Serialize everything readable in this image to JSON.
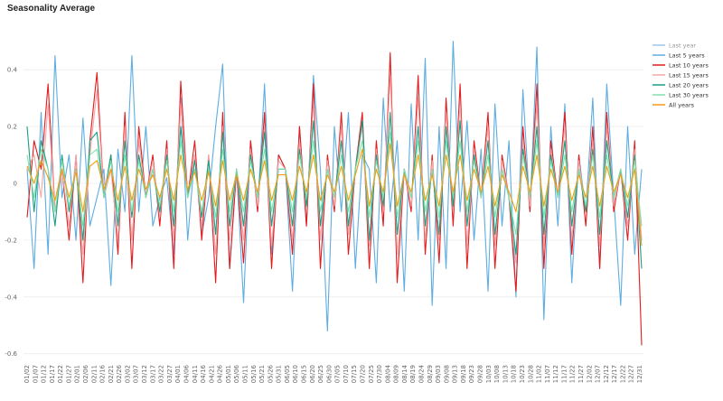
{
  "chart_data": {
    "type": "line",
    "title": "Seasonality Average",
    "xlabel": "",
    "ylabel": "",
    "ylim": [
      -0.62,
      0.55
    ],
    "yticks": [
      0.4,
      0.2,
      0,
      -0.2,
      -0.4,
      -0.6
    ],
    "ytick_labels": [
      "0.4",
      "0.2",
      "0",
      "-0.2",
      "-0.4",
      "-0.6"
    ],
    "grid": "horizontal",
    "legend_position": "right",
    "xtick_labels": [
      "01/02",
      "01/07",
      "01/12",
      "01/17",
      "01/22",
      "01/27",
      "02/01",
      "02/06",
      "02/11",
      "02/16",
      "02/21",
      "02/26",
      "03/02",
      "03/07",
      "03/12",
      "03/17",
      "03/22",
      "03/27",
      "04/01",
      "04/06",
      "04/11",
      "04/16",
      "04/21",
      "04/26",
      "05/01",
      "05/06",
      "05/11",
      "05/16",
      "05/21",
      "05/26",
      "05/31",
      "06/05",
      "06/10",
      "06/15",
      "06/20",
      "06/25",
      "06/30",
      "07/05",
      "07/10",
      "07/15",
      "07/20",
      "07/25",
      "07/30",
      "08/04",
      "08/09",
      "08/14",
      "08/19",
      "08/24",
      "08/29",
      "09/03",
      "09/08",
      "09/13",
      "09/18",
      "09/23",
      "09/28",
      "10/03",
      "10/08",
      "10/13",
      "10/18",
      "10/23",
      "10/28",
      "11/02",
      "11/07",
      "11/12",
      "11/17",
      "11/22",
      "11/27",
      "12/02",
      "12/07",
      "12/12",
      "12/17",
      "12/22",
      "12/27",
      "12/31"
    ],
    "series": [
      {
        "name": "Last year",
        "color": "#9fc5e8",
        "muted": true,
        "values": []
      },
      {
        "name": "Last 5 years",
        "color": "#5dade2",
        "values": [
          0.05,
          -0.3,
          0.25,
          -0.25,
          0.45,
          -0.05,
          0.1,
          -0.2,
          0.23,
          -0.15,
          -0.05,
          0.05,
          -0.36,
          0.12,
          -0.1,
          0.45,
          -0.1,
          0.2,
          -0.15,
          -0.05,
          0.02,
          -0.25,
          0.3,
          -0.2,
          0.1,
          -0.18,
          -0.05,
          0.2,
          0.42,
          -0.3,
          0.05,
          -0.42,
          0.15,
          -0.1,
          0.35,
          -0.25,
          0.1,
          0.05,
          -0.38,
          0.2,
          -0.15,
          0.38,
          0.05,
          -0.52,
          0.2,
          -0.1,
          0.25,
          -0.3,
          0.1,
          0.05,
          -0.35,
          0.3,
          -0.1,
          0.15,
          -0.38,
          0.28,
          -0.2,
          0.44,
          -0.43,
          0.2,
          -0.3,
          0.5,
          -0.1,
          0.22,
          -0.2,
          0.12,
          -0.38,
          0.28,
          -0.15,
          0.15,
          -0.4,
          0.33,
          -0.1,
          0.48,
          -0.48,
          0.2,
          -0.15,
          0.28,
          -0.35,
          0.1,
          -0.1,
          0.3,
          -0.3,
          0.35,
          -0.05,
          -0.43,
          0.2,
          -0.25,
          0.05
        ]
      },
      {
        "name": "Last 10 years",
        "color": "#e41a1c",
        "values": [
          -0.12,
          0.15,
          0.05,
          0.35,
          -0.1,
          0.05,
          -0.2,
          0.1,
          -0.35,
          0.15,
          0.39,
          -0.05,
          0.1,
          -0.25,
          0.25,
          -0.3,
          0.2,
          -0.05,
          0.1,
          -0.15,
          0.15,
          -0.3,
          0.36,
          -0.05,
          0.15,
          -0.2,
          0.1,
          -0.35,
          0.25,
          -0.3,
          0.05,
          -0.28,
          0.15,
          -0.1,
          0.25,
          -0.3,
          0.1,
          0.05,
          -0.25,
          0.2,
          -0.15,
          0.35,
          -0.3,
          0.1,
          -0.1,
          0.25,
          -0.25,
          0.05,
          0.25,
          -0.3,
          0.15,
          -0.15,
          0.46,
          -0.35,
          0.05,
          -0.1,
          0.38,
          -0.25,
          0.1,
          -0.28,
          0.3,
          -0.15,
          0.35,
          -0.3,
          0.15,
          -0.05,
          0.25,
          -0.3,
          0.1,
          -0.05,
          -0.38,
          0.2,
          -0.1,
          0.35,
          -0.3,
          0.15,
          -0.05,
          0.25,
          -0.25,
          0.1,
          -0.15,
          0.2,
          -0.3,
          0.25,
          -0.1,
          0.05,
          -0.2,
          0.15,
          -0.57
        ]
      },
      {
        "name": "Last 15 years",
        "color": "#f4a6a6",
        "values": [
          0.05,
          0.1,
          -0.05,
          0.28,
          -0.1,
          0.05,
          -0.15,
          0.1,
          -0.25,
          0.1,
          0.33,
          -0.05,
          0.05,
          -0.2,
          0.2,
          -0.2,
          0.15,
          -0.05,
          0.08,
          -0.12,
          0.12,
          -0.2,
          0.28,
          -0.05,
          0.1,
          -0.15,
          0.1,
          -0.25,
          0.2,
          -0.2,
          0.05,
          -0.2,
          0.12,
          -0.08,
          0.2,
          -0.22,
          0.08,
          0.05,
          -0.2,
          0.15,
          -0.1,
          0.28,
          -0.2,
          0.08,
          -0.08,
          0.2,
          -0.18,
          0.05,
          0.2,
          -0.22,
          0.12,
          -0.1,
          0.38,
          -0.25,
          0.05,
          -0.08,
          0.3,
          -0.2,
          0.08,
          -0.2,
          0.25,
          -0.1,
          0.28,
          -0.22,
          0.12,
          -0.05,
          0.2,
          -0.22,
          0.08,
          -0.05,
          -0.28,
          0.15,
          -0.08,
          0.28,
          -0.22,
          0.12,
          -0.05,
          0.2,
          -0.2,
          0.08,
          -0.1,
          0.15,
          -0.22,
          0.2,
          -0.08,
          0.05,
          -0.15,
          0.12,
          -0.2
        ]
      },
      {
        "name": "Last 20 years",
        "color": "#16a085",
        "values": [
          0.2,
          -0.1,
          0.15,
          0.05,
          -0.15,
          0.1,
          -0.1,
          0.05,
          -0.2,
          0.15,
          0.18,
          -0.05,
          0.1,
          -0.15,
          0.15,
          -0.12,
          0.1,
          -0.05,
          0.05,
          -0.1,
          0.1,
          -0.15,
          0.2,
          -0.05,
          0.08,
          -0.12,
          0.08,
          -0.18,
          0.18,
          -0.15,
          0.05,
          -0.15,
          0.1,
          -0.05,
          0.18,
          -0.15,
          0.05,
          0.05,
          -0.15,
          0.12,
          -0.08,
          0.22,
          -0.15,
          0.05,
          -0.05,
          0.15,
          -0.15,
          0.05,
          0.22,
          -0.2,
          0.1,
          -0.08,
          0.25,
          -0.18,
          0.05,
          -0.05,
          0.2,
          -0.15,
          0.05,
          -0.18,
          0.2,
          -0.08,
          0.22,
          -0.15,
          0.1,
          -0.05,
          0.15,
          -0.18,
          0.05,
          -0.05,
          -0.25,
          0.12,
          -0.05,
          0.2,
          -0.18,
          0.1,
          -0.05,
          0.15,
          -0.15,
          0.05,
          -0.1,
          0.12,
          -0.18,
          0.15,
          -0.05,
          0.05,
          -0.12,
          0.1,
          -0.3
        ]
      },
      {
        "name": "Last 30 years",
        "color": "#82e0aa",
        "values": [
          0.1,
          -0.05,
          0.12,
          0.05,
          -0.1,
          0.08,
          -0.08,
          0.05,
          -0.15,
          0.1,
          0.12,
          -0.05,
          0.08,
          -0.1,
          0.1,
          -0.1,
          0.08,
          -0.05,
          0.05,
          -0.08,
          0.08,
          -0.1,
          0.15,
          -0.05,
          0.05,
          -0.1,
          0.05,
          -0.12,
          0.12,
          -0.1,
          0.05,
          -0.1,
          0.08,
          -0.05,
          0.12,
          -0.1,
          0.05,
          0.05,
          -0.1,
          0.1,
          -0.05,
          0.15,
          -0.1,
          0.05,
          -0.05,
          0.1,
          -0.1,
          0.05,
          0.15,
          -0.12,
          0.08,
          -0.05,
          0.18,
          -0.12,
          0.05,
          -0.05,
          0.15,
          -0.1,
          0.05,
          -0.12,
          0.15,
          -0.05,
          0.15,
          -0.1,
          0.08,
          -0.05,
          0.1,
          -0.12,
          0.05,
          -0.05,
          -0.18,
          0.1,
          -0.05,
          0.15,
          -0.12,
          0.08,
          -0.05,
          0.1,
          -0.1,
          0.05,
          -0.08,
          0.1,
          -0.12,
          0.1,
          -0.05,
          0.05,
          -0.08,
          0.08,
          -0.15
        ]
      },
      {
        "name": "All years",
        "color": "#f39c12",
        "values": [
          0.06,
          0.0,
          0.08,
          0.02,
          -0.06,
          0.05,
          -0.05,
          0.04,
          -0.1,
          0.06,
          0.08,
          -0.02,
          0.05,
          -0.06,
          0.06,
          -0.06,
          0.05,
          -0.02,
          0.03,
          -0.05,
          0.05,
          -0.06,
          0.1,
          -0.02,
          0.04,
          -0.06,
          0.04,
          -0.08,
          0.08,
          -0.06,
          0.03,
          -0.06,
          0.05,
          -0.03,
          0.08,
          -0.06,
          0.03,
          0.03,
          -0.06,
          0.06,
          -0.03,
          0.1,
          -0.06,
          0.03,
          -0.03,
          0.06,
          -0.06,
          0.03,
          0.12,
          -0.08,
          0.05,
          -0.03,
          0.14,
          -0.08,
          0.03,
          -0.03,
          0.1,
          -0.06,
          0.03,
          -0.08,
          0.1,
          -0.03,
          0.1,
          -0.06,
          0.05,
          -0.03,
          0.06,
          -0.08,
          0.03,
          -0.03,
          -0.1,
          0.06,
          -0.03,
          0.1,
          -0.08,
          0.05,
          -0.03,
          0.06,
          -0.06,
          0.03,
          -0.05,
          0.06,
          -0.08,
          0.06,
          -0.03,
          0.03,
          -0.05,
          0.05,
          -0.22
        ]
      }
    ]
  }
}
